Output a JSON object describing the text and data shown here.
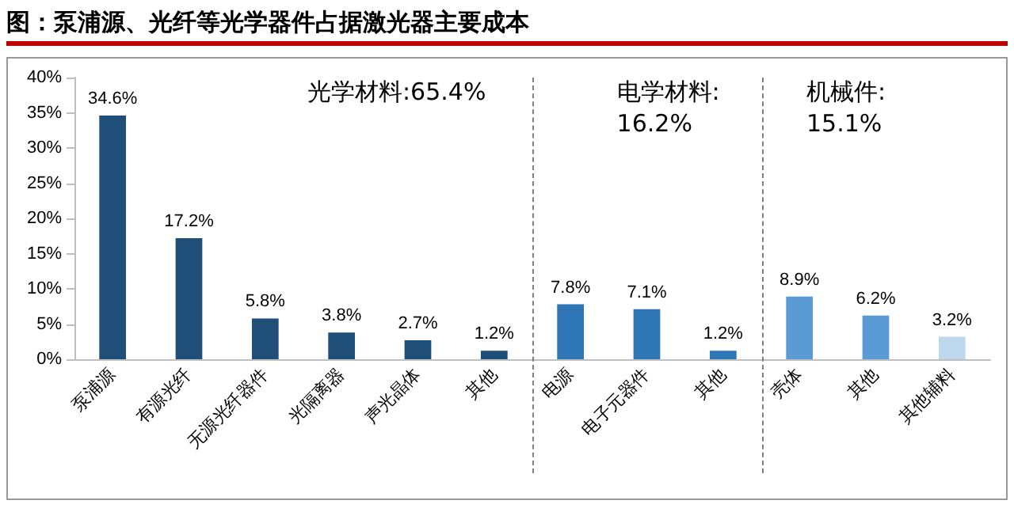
{
  "chart_data": {
    "type": "bar",
    "title": "图：泵浦源、光纤等光学器件占据激光器主要成本",
    "categories": [
      "泵浦源",
      "有源光纤",
      "无源光纤器件",
      "光隔离器",
      "声光晶体",
      "其他",
      "电源",
      "电子元器件",
      "其他",
      "壳体",
      "其他",
      "其他辅料"
    ],
    "values": [
      34.6,
      17.2,
      5.8,
      3.8,
      2.7,
      1.2,
      7.8,
      7.1,
      1.2,
      8.9,
      6.2,
      3.2
    ],
    "value_labels": [
      "34.6%",
      "17.2%",
      "5.8%",
      "3.8%",
      "2.7%",
      "1.2%",
      "7.8%",
      "7.1%",
      "1.2%",
      "8.9%",
      "6.2%",
      "3.2%"
    ],
    "colors": [
      "#1f4e79",
      "#1f4e79",
      "#1f4e79",
      "#1f4e79",
      "#1f4e79",
      "#1f4e79",
      "#2e75b6",
      "#2e75b6",
      "#2e75b6",
      "#5b9bd5",
      "#5b9bd5",
      "#bdd7ee"
    ],
    "ylim": [
      0,
      40
    ],
    "yticks": [
      {
        "value": 0,
        "label": "0%"
      },
      {
        "value": 5,
        "label": "5%"
      },
      {
        "value": 10,
        "label": "10%"
      },
      {
        "value": 15,
        "label": "15%"
      },
      {
        "value": 20,
        "label": "20%"
      },
      {
        "value": 25,
        "label": "25%"
      },
      {
        "value": 30,
        "label": "30%"
      },
      {
        "value": 35,
        "label": "35%"
      },
      {
        "value": 40,
        "label": "40%"
      }
    ],
    "annotations": [
      "光学材料:65.4%",
      "电学材料:\n16.2%",
      "机械件:\n15.1%"
    ],
    "grid": false
  }
}
